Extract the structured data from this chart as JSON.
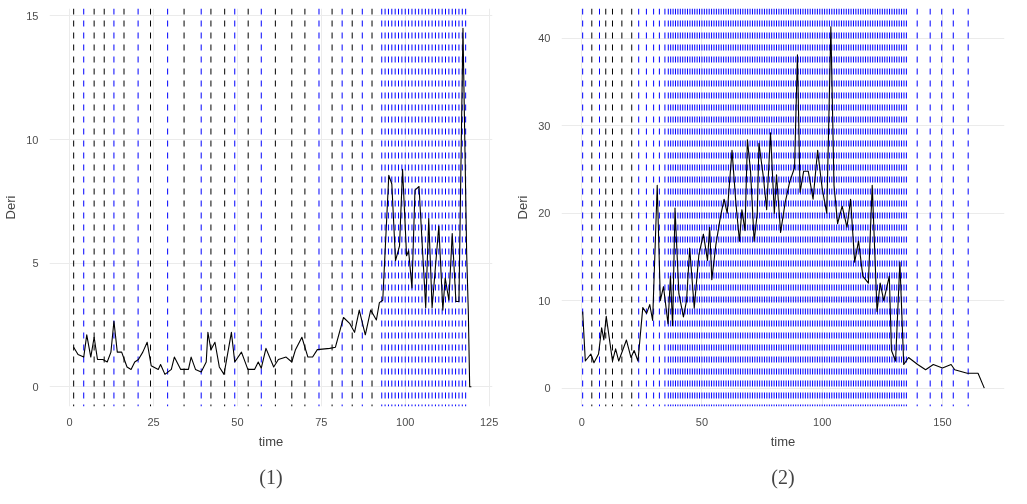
{
  "chart_data": [
    {
      "type": "line",
      "xlabel": "time",
      "ylabel": "Deri",
      "annotations": [
        "(1)"
      ],
      "grid": true,
      "xlim": [
        -6,
        126
      ],
      "ylim": [
        -0.8,
        15.3
      ],
      "xticks": [
        0,
        25,
        50,
        75,
        100,
        125
      ],
      "yticks": [
        0,
        5,
        10,
        15
      ],
      "series": [
        {
          "color": "#000000",
          "x": [
            1.2,
            2.5,
            4.2,
            5.1,
            6.3,
            7.3,
            8.3,
            9.9,
            11.2,
            12.3,
            13.2,
            14.2,
            15.5,
            17.1,
            18.3,
            19.4,
            20.5,
            21.8,
            23.1,
            24.3,
            26.4,
            27.1,
            28.4,
            30.3,
            31.2,
            33.1,
            35.4,
            36.2,
            37.5,
            39.2,
            40.7,
            41.2,
            42.1,
            43.3,
            44.6,
            46.0,
            48.2,
            49.2,
            51.2,
            53.1,
            55.1,
            56.2,
            57.1,
            58.5,
            60.8,
            62.2,
            64.5,
            66.2,
            67.3,
            69.2,
            71.0,
            72.4,
            73.8,
            77.5,
            79.2,
            81.6,
            83.5,
            84.9,
            86.3,
            88.1,
            89.7,
            91.4,
            92.3,
            93.3,
            95.1,
            96.0,
            97.1,
            98.3,
            99.2,
            100.4,
            101.0,
            102.0,
            102.9,
            104.1,
            106.1,
            107.0,
            108.0,
            110.0,
            111.2,
            111.9,
            113.0,
            114.0,
            115.1,
            116.0,
            117.2,
            118.3,
            118.8,
            119.2,
            119.7
          ],
          "values": [
            1.6,
            1.3,
            1.2,
            2.1,
            1.2,
            2.0,
            1.1,
            1.1,
            1.0,
            1.4,
            2.65,
            1.4,
            1.4,
            0.8,
            0.7,
            1.0,
            1.1,
            1.4,
            1.8,
            0.85,
            0.7,
            0.9,
            0.5,
            0.7,
            1.2,
            0.7,
            0.7,
            1.2,
            0.7,
            0.6,
            1.0,
            2.2,
            1.5,
            1.8,
            0.8,
            0.5,
            2.2,
            1.0,
            1.4,
            0.7,
            0.7,
            1.0,
            0.75,
            1.55,
            0.8,
            1.1,
            1.2,
            1.0,
            1.5,
            2.0,
            1.2,
            1.2,
            1.5,
            1.55,
            1.6,
            2.8,
            2.55,
            2.2,
            3.1,
            2.1,
            3.1,
            2.7,
            3.4,
            3.5,
            8.55,
            8.2,
            5.1,
            5.7,
            8.8,
            5.3,
            5.5,
            4.0,
            7.95,
            8.1,
            3.2,
            6.8,
            3.2,
            6.5,
            3.1,
            4.4,
            3.5,
            6.2,
            3.45,
            3.45,
            14.5,
            5.4,
            3.0,
            0,
            0
          ]
        }
      ],
      "ref_lines": [
        {
          "axis": "x",
          "value": 1.2,
          "color": "#000000"
        },
        {
          "axis": "x",
          "value": 4.2,
          "color": "#0000ff"
        },
        {
          "axis": "x",
          "value": 7.3,
          "color": "#000000"
        },
        {
          "axis": "x",
          "value": 10.3,
          "color": "#000000"
        },
        {
          "axis": "x",
          "value": 13.2,
          "color": "#0000ff"
        },
        {
          "axis": "x",
          "value": 16.2,
          "color": "#000000"
        },
        {
          "axis": "x",
          "value": 20.4,
          "color": "#0000ff"
        },
        {
          "axis": "x",
          "value": 24.1,
          "color": "#000000"
        },
        {
          "axis": "x",
          "value": 29.2,
          "color": "#0000ff"
        },
        {
          "axis": "x",
          "value": 34.1,
          "color": "#000000"
        },
        {
          "axis": "x",
          "value": 39.2,
          "color": "#0000ff"
        },
        {
          "axis": "x",
          "value": 42.1,
          "color": "#000000"
        },
        {
          "axis": "x",
          "value": 46.2,
          "color": "#000000"
        },
        {
          "axis": "x",
          "value": 49.2,
          "color": "#0000ff"
        },
        {
          "axis": "x",
          "value": 53.2,
          "color": "#000000"
        },
        {
          "axis": "x",
          "value": 57.1,
          "color": "#0000ff"
        },
        {
          "axis": "x",
          "value": 61.3,
          "color": "#000000"
        },
        {
          "axis": "x",
          "value": 66.2,
          "color": "#000000"
        },
        {
          "axis": "x",
          "value": 70.1,
          "color": "#000000"
        },
        {
          "axis": "x",
          "value": 74.3,
          "color": "#0000ff"
        },
        {
          "axis": "x",
          "value": 78.2,
          "color": "#000000"
        },
        {
          "axis": "x",
          "value": 81.2,
          "color": "#0000ff"
        },
        {
          "axis": "x",
          "value": 84.2,
          "color": "#000000"
        },
        {
          "axis": "x",
          "value": 87.2,
          "color": "#0000ff"
        },
        {
          "axis": "x",
          "value": 90.1,
          "color": "#000000"
        },
        {
          "axis": "x",
          "value": 93,
          "color": "#0000ff"
        },
        {
          "axis": "x",
          "value": 94,
          "color": "#0000ff"
        },
        {
          "axis": "x",
          "value": 95,
          "color": "#0000ff"
        },
        {
          "axis": "x",
          "value": 96,
          "color": "#0000ff"
        },
        {
          "axis": "x",
          "value": 97,
          "color": "#0000ff"
        },
        {
          "axis": "x",
          "value": 98,
          "color": "#0000ff"
        },
        {
          "axis": "x",
          "value": 99,
          "color": "#0000ff"
        },
        {
          "axis": "x",
          "value": 100,
          "color": "#0000ff"
        },
        {
          "axis": "x",
          "value": 101,
          "color": "#0000ff"
        },
        {
          "axis": "x",
          "value": 102,
          "color": "#0000ff"
        },
        {
          "axis": "x",
          "value": 103,
          "color": "#0000ff"
        },
        {
          "axis": "x",
          "value": 104,
          "color": "#0000ff"
        },
        {
          "axis": "x",
          "value": 105,
          "color": "#0000ff"
        },
        {
          "axis": "x",
          "value": 106,
          "color": "#0000ff"
        },
        {
          "axis": "x",
          "value": 107,
          "color": "#0000ff"
        },
        {
          "axis": "x",
          "value": 108,
          "color": "#0000ff"
        },
        {
          "axis": "x",
          "value": 109,
          "color": "#0000ff"
        },
        {
          "axis": "x",
          "value": 110,
          "color": "#0000ff"
        },
        {
          "axis": "x",
          "value": 111,
          "color": "#0000ff"
        },
        {
          "axis": "x",
          "value": 112,
          "color": "#0000ff"
        },
        {
          "axis": "x",
          "value": 113,
          "color": "#0000ff"
        },
        {
          "axis": "x",
          "value": 114,
          "color": "#0000ff"
        },
        {
          "axis": "x",
          "value": 115,
          "color": "#0000ff"
        },
        {
          "axis": "x",
          "value": 116,
          "color": "#0000ff"
        },
        {
          "axis": "x",
          "value": 117,
          "color": "#0000ff"
        },
        {
          "axis": "x",
          "value": 118,
          "color": "#0000ff"
        }
      ]
    },
    {
      "type": "line",
      "xlabel": "time",
      "ylabel": "Deri",
      "annotations": [
        "(2)"
      ],
      "grid": true,
      "xlim": [
        -8.4,
        175.8
      ],
      "ylim": [
        -2.1,
        43.4
      ],
      "xticks": [
        0,
        50,
        100,
        150
      ],
      "yticks": [
        0,
        10,
        20,
        30,
        40
      ],
      "series": [
        {
          "color": "#000000",
          "x": [
            0.4,
            1.5,
            3.8,
            5.1,
            7.0,
            8.3,
            9.2,
            10.2,
            12.8,
            14.1,
            15.4,
            18.6,
            20.5,
            21.8,
            23.4,
            25.4,
            27.0,
            28.3,
            29.5,
            31.4,
            32.7,
            34.0,
            35.9,
            36.9,
            37.8,
            38.8,
            40.4,
            42.3,
            43.6,
            44.9,
            46.8,
            48.7,
            50.6,
            52.3,
            53.2,
            54.1,
            55.8,
            57.7,
            59.2,
            60.5,
            62.5,
            64.1,
            65.6,
            66.6,
            67.9,
            68.9,
            70.2,
            71.7,
            73.0,
            73.7,
            75.6,
            76.9,
            78.5,
            80.1,
            81.0,
            82.7,
            84.6,
            86.5,
            88.5,
            89.7,
            90.8,
            92.3,
            94.2,
            96.2,
            98.1,
            100.0,
            101.9,
            103.6,
            104.9,
            106.4,
            108.3,
            110.3,
            111.8,
            113.5,
            115.1,
            116.9,
            119.2,
            120.8,
            122.8,
            124.1,
            125.6,
            127.9,
            128.8,
            130.5,
            132.3,
            133.9,
            135.9,
            139.7,
            143.0,
            146.2,
            150.0,
            153.6,
            155.1,
            160.3,
            164.8,
            167.4
          ],
          "values": [
            8.75,
            3.1,
            3.9,
            2.9,
            3.9,
            6.9,
            5.5,
            8.2,
            3.1,
            4.5,
            3.1,
            5.5,
            3.5,
            4.3,
            3.1,
            9.2,
            8.55,
            9.55,
            7.75,
            23.2,
            10.0,
            11.6,
            7.35,
            12.8,
            7.15,
            20.6,
            10.8,
            8.15,
            10.0,
            16.0,
            9.15,
            15.2,
            17.6,
            14.6,
            18.4,
            12.4,
            16.4,
            19.6,
            21.6,
            20.0,
            27.2,
            21.2,
            16.8,
            20.4,
            18.0,
            28.4,
            24.8,
            16.8,
            20.0,
            28.0,
            24.0,
            20.4,
            29.2,
            20.0,
            24.4,
            17.8,
            21.2,
            23.6,
            25.2,
            38.1,
            22.4,
            24.8,
            24.8,
            21.6,
            27.2,
            22.8,
            20.0,
            41.3,
            23.2,
            18.8,
            20.8,
            18.4,
            21.6,
            14.4,
            16.8,
            12.8,
            12.0,
            23.2,
            8.75,
            12.0,
            10.0,
            12.8,
            4.3,
            3.1,
            14.4,
            2.7,
            3.5,
            2.7,
            2.1,
            2.7,
            2.3,
            2.7,
            2.1,
            1.7,
            1.7,
            0
          ]
        }
      ],
      "ref_lines": [
        {
          "axis": "x",
          "value": 0.4,
          "color": "#0000ff"
        },
        {
          "axis": "x",
          "value": 4.2,
          "color": "#000000"
        },
        {
          "axis": "x",
          "value": 7.4,
          "color": "#0000ff"
        },
        {
          "axis": "x",
          "value": 10,
          "color": "#000000"
        },
        {
          "axis": "x",
          "value": 12.8,
          "color": "#000000"
        },
        {
          "axis": "x",
          "value": 16.7,
          "color": "#000000"
        },
        {
          "axis": "x",
          "value": 20.8,
          "color": "#000000"
        },
        {
          "axis": "x",
          "value": 23.7,
          "color": "#0000ff"
        },
        {
          "axis": "x",
          "value": 26.9,
          "color": "#0000ff"
        },
        {
          "axis": "x",
          "value": 29.9,
          "color": "#0000ff"
        },
        {
          "axis": "x",
          "value": 32.3,
          "color": "#0000ff"
        },
        {
          "axis": "x",
          "value": 34.6,
          "color": "#0000ff"
        },
        {
          "axis": "x",
          "value": 36,
          "color": "#0000ff"
        },
        {
          "axis": "x",
          "value": 37,
          "color": "#0000ff"
        },
        {
          "axis": "x",
          "value": 38,
          "color": "#0000ff"
        },
        {
          "axis": "x",
          "value": 39,
          "color": "#0000ff"
        },
        {
          "axis": "x",
          "value": 40,
          "color": "#0000ff"
        },
        {
          "axis": "x",
          "value": 41,
          "color": "#0000ff"
        },
        {
          "axis": "x",
          "value": 42,
          "color": "#0000ff"
        },
        {
          "axis": "x",
          "value": 43,
          "color": "#0000ff"
        },
        {
          "axis": "x",
          "value": 44,
          "color": "#0000ff"
        },
        {
          "axis": "x",
          "value": 45,
          "color": "#0000ff"
        },
        {
          "axis": "x",
          "value": 46,
          "color": "#0000ff"
        },
        {
          "axis": "x",
          "value": 47,
          "color": "#0000ff"
        },
        {
          "axis": "x",
          "value": 48,
          "color": "#0000ff"
        },
        {
          "axis": "x",
          "value": 49,
          "color": "#0000ff"
        },
        {
          "axis": "x",
          "value": 50,
          "color": "#0000ff"
        },
        {
          "axis": "x",
          "value": 51,
          "color": "#0000ff"
        },
        {
          "axis": "x",
          "value": 52,
          "color": "#0000ff"
        },
        {
          "axis": "x",
          "value": 53,
          "color": "#0000ff"
        },
        {
          "axis": "x",
          "value": 54,
          "color": "#0000ff"
        },
        {
          "axis": "x",
          "value": 55,
          "color": "#0000ff"
        },
        {
          "axis": "x",
          "value": 56,
          "color": "#0000ff"
        },
        {
          "axis": "x",
          "value": 57,
          "color": "#0000ff"
        },
        {
          "axis": "x",
          "value": 58,
          "color": "#0000ff"
        },
        {
          "axis": "x",
          "value": 59,
          "color": "#0000ff"
        },
        {
          "axis": "x",
          "value": 60,
          "color": "#0000ff"
        },
        {
          "axis": "x",
          "value": 61,
          "color": "#0000ff"
        },
        {
          "axis": "x",
          "value": 62,
          "color": "#0000ff"
        },
        {
          "axis": "x",
          "value": 63,
          "color": "#0000ff"
        },
        {
          "axis": "x",
          "value": 64,
          "color": "#0000ff"
        },
        {
          "axis": "x",
          "value": 65,
          "color": "#0000ff"
        },
        {
          "axis": "x",
          "value": 66,
          "color": "#0000ff"
        },
        {
          "axis": "x",
          "value": 67,
          "color": "#0000ff"
        },
        {
          "axis": "x",
          "value": 68,
          "color": "#0000ff"
        },
        {
          "axis": "x",
          "value": 69,
          "color": "#0000ff"
        },
        {
          "axis": "x",
          "value": 70,
          "color": "#0000ff"
        },
        {
          "axis": "x",
          "value": 71,
          "color": "#0000ff"
        },
        {
          "axis": "x",
          "value": 72,
          "color": "#0000ff"
        },
        {
          "axis": "x",
          "value": 73,
          "color": "#0000ff"
        },
        {
          "axis": "x",
          "value": 74,
          "color": "#0000ff"
        },
        {
          "axis": "x",
          "value": 75,
          "color": "#0000ff"
        },
        {
          "axis": "x",
          "value": 76,
          "color": "#0000ff"
        },
        {
          "axis": "x",
          "value": 77,
          "color": "#0000ff"
        },
        {
          "axis": "x",
          "value": 78,
          "color": "#0000ff"
        },
        {
          "axis": "x",
          "value": 79,
          "color": "#0000ff"
        },
        {
          "axis": "x",
          "value": 80,
          "color": "#0000ff"
        },
        {
          "axis": "x",
          "value": 81,
          "color": "#0000ff"
        },
        {
          "axis": "x",
          "value": 82,
          "color": "#0000ff"
        },
        {
          "axis": "x",
          "value": 83,
          "color": "#0000ff"
        },
        {
          "axis": "x",
          "value": 84,
          "color": "#0000ff"
        },
        {
          "axis": "x",
          "value": 85,
          "color": "#0000ff"
        },
        {
          "axis": "x",
          "value": 86,
          "color": "#0000ff"
        },
        {
          "axis": "x",
          "value": 87,
          "color": "#0000ff"
        },
        {
          "axis": "x",
          "value": 88,
          "color": "#0000ff"
        },
        {
          "axis": "x",
          "value": 89,
          "color": "#0000ff"
        },
        {
          "axis": "x",
          "value": 90,
          "color": "#0000ff"
        },
        {
          "axis": "x",
          "value": 91,
          "color": "#0000ff"
        },
        {
          "axis": "x",
          "value": 92,
          "color": "#0000ff"
        },
        {
          "axis": "x",
          "value": 93,
          "color": "#0000ff"
        },
        {
          "axis": "x",
          "value": 94,
          "color": "#0000ff"
        },
        {
          "axis": "x",
          "value": 95,
          "color": "#0000ff"
        },
        {
          "axis": "x",
          "value": 96,
          "color": "#0000ff"
        },
        {
          "axis": "x",
          "value": 97,
          "color": "#0000ff"
        },
        {
          "axis": "x",
          "value": 98,
          "color": "#0000ff"
        },
        {
          "axis": "x",
          "value": 99,
          "color": "#0000ff"
        },
        {
          "axis": "x",
          "value": 100,
          "color": "#0000ff"
        },
        {
          "axis": "x",
          "value": 101,
          "color": "#0000ff"
        },
        {
          "axis": "x",
          "value": 102,
          "color": "#0000ff"
        },
        {
          "axis": "x",
          "value": 103,
          "color": "#0000ff"
        },
        {
          "axis": "x",
          "value": 104,
          "color": "#0000ff"
        },
        {
          "axis": "x",
          "value": 105,
          "color": "#0000ff"
        },
        {
          "axis": "x",
          "value": 106,
          "color": "#0000ff"
        },
        {
          "axis": "x",
          "value": 107,
          "color": "#0000ff"
        },
        {
          "axis": "x",
          "value": 108,
          "color": "#0000ff"
        },
        {
          "axis": "x",
          "value": 109,
          "color": "#0000ff"
        },
        {
          "axis": "x",
          "value": 110,
          "color": "#0000ff"
        },
        {
          "axis": "x",
          "value": 111,
          "color": "#0000ff"
        },
        {
          "axis": "x",
          "value": 112,
          "color": "#0000ff"
        },
        {
          "axis": "x",
          "value": 113,
          "color": "#0000ff"
        },
        {
          "axis": "x",
          "value": 114,
          "color": "#0000ff"
        },
        {
          "axis": "x",
          "value": 115,
          "color": "#0000ff"
        },
        {
          "axis": "x",
          "value": 116,
          "color": "#0000ff"
        },
        {
          "axis": "x",
          "value": 117,
          "color": "#0000ff"
        },
        {
          "axis": "x",
          "value": 118,
          "color": "#0000ff"
        },
        {
          "axis": "x",
          "value": 119,
          "color": "#0000ff"
        },
        {
          "axis": "x",
          "value": 120,
          "color": "#0000ff"
        },
        {
          "axis": "x",
          "value": 121,
          "color": "#0000ff"
        },
        {
          "axis": "x",
          "value": 122,
          "color": "#0000ff"
        },
        {
          "axis": "x",
          "value": 123,
          "color": "#0000ff"
        },
        {
          "axis": "x",
          "value": 124,
          "color": "#0000ff"
        },
        {
          "axis": "x",
          "value": 125,
          "color": "#0000ff"
        },
        {
          "axis": "x",
          "value": 126,
          "color": "#0000ff"
        },
        {
          "axis": "x",
          "value": 127,
          "color": "#0000ff"
        },
        {
          "axis": "x",
          "value": 128,
          "color": "#0000ff"
        },
        {
          "axis": "x",
          "value": 129,
          "color": "#0000ff"
        },
        {
          "axis": "x",
          "value": 130,
          "color": "#0000ff"
        },
        {
          "axis": "x",
          "value": 131,
          "color": "#0000ff"
        },
        {
          "axis": "x",
          "value": 132,
          "color": "#0000ff"
        },
        {
          "axis": "x",
          "value": 133,
          "color": "#0000ff"
        },
        {
          "axis": "x",
          "value": 134,
          "color": "#0000ff"
        },
        {
          "axis": "x",
          "value": 135,
          "color": "#0000ff"
        },
        {
          "axis": "x",
          "value": 139.5,
          "color": "#0000ff"
        },
        {
          "axis": "x",
          "value": 144.9,
          "color": "#0000ff"
        },
        {
          "axis": "x",
          "value": 149.7,
          "color": "#0000ff"
        },
        {
          "axis": "x",
          "value": 154.5,
          "color": "#0000ff"
        },
        {
          "axis": "x",
          "value": 160.7,
          "color": "#0000ff"
        }
      ]
    }
  ]
}
